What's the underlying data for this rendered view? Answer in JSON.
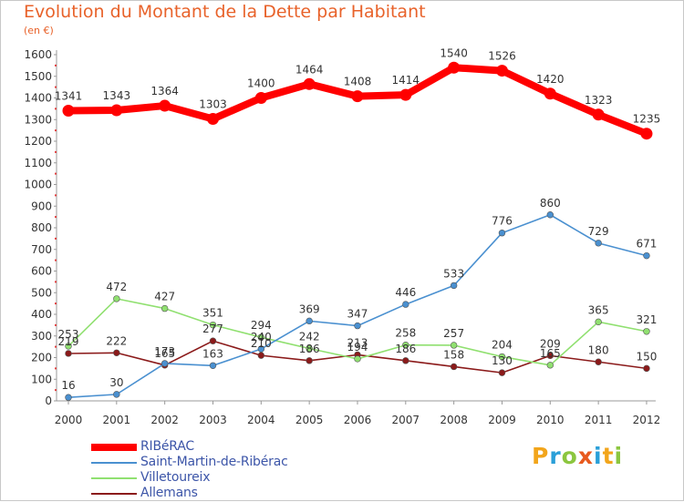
{
  "title": "Evolution du Montant de la Dette par Habitant",
  "subtitle": "(en €)",
  "logo": {
    "text": "Proxiti",
    "letters": [
      {
        "ch": "P",
        "color": "#f2a51b"
      },
      {
        "ch": "r",
        "color": "#2a9fd8"
      },
      {
        "ch": "o",
        "color": "#8cc63f"
      },
      {
        "ch": "x",
        "color": "#e85a1e"
      },
      {
        "ch": "i",
        "color": "#2a9fd8"
      },
      {
        "ch": "t",
        "color": "#f2a51b"
      },
      {
        "ch": "i",
        "color": "#8cc63f"
      }
    ]
  },
  "chart_data": {
    "type": "line",
    "title": "Evolution du Montant de la Dette par Habitant",
    "subtitle": "(en €)",
    "x": [
      "2000",
      "2001",
      "2002",
      "2003",
      "2004",
      "2005",
      "2006",
      "2007",
      "2008",
      "2009",
      "2010",
      "2011",
      "2012"
    ],
    "ylim": [
      0,
      1600
    ],
    "yticks": [
      0,
      100,
      200,
      300,
      400,
      500,
      600,
      700,
      800,
      900,
      1000,
      1100,
      1200,
      1300,
      1400,
      1500,
      1600
    ],
    "grid": false,
    "legend_position": "bottom-left",
    "series": [
      {
        "name": "RIBéRAC",
        "color": "#ff0000",
        "values": [
          1341,
          1343,
          1364,
          1303,
          1400,
          1464,
          1408,
          1414,
          1540,
          1526,
          1420,
          1323,
          1235
        ]
      },
      {
        "name": "Saint-Martin-de-Ribérac",
        "color": "#4a90d0",
        "values": [
          16,
          30,
          173,
          163,
          240,
          369,
          347,
          446,
          533,
          776,
          860,
          729,
          671
        ]
      },
      {
        "name": "Villetoureix",
        "color": "#90e070",
        "values": [
          253,
          472,
          427,
          351,
          294,
          242,
          194,
          258,
          257,
          204,
          165,
          365,
          321
        ]
      },
      {
        "name": "Allemans",
        "color": "#8b1a1a",
        "values": [
          219,
          222,
          165,
          277,
          210,
          186,
          213,
          186,
          158,
          130,
          209,
          180,
          150
        ]
      }
    ]
  }
}
